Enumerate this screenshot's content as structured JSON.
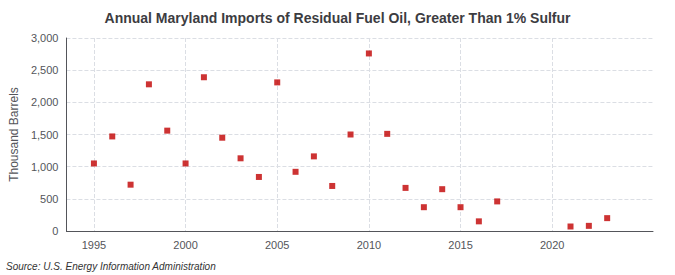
{
  "chart_data": {
    "type": "scatter",
    "title": "Annual Maryland Imports of Residual Fuel Oil, Greater Than 1% Sulfur",
    "ylabel": "Thousand Barrels",
    "annotations": [
      "Source: U.S. Energy Information Administration"
    ],
    "x": [
      1995,
      1996,
      1997,
      1998,
      1999,
      2000,
      2001,
      2002,
      2003,
      2004,
      2005,
      2006,
      2007,
      2008,
      2009,
      2010,
      2011,
      2012,
      2013,
      2014,
      2015,
      2016,
      2017,
      2021,
      2022,
      2023
    ],
    "values": [
      1050,
      1470,
      720,
      2280,
      1560,
      1050,
      2390,
      1450,
      1130,
      840,
      2310,
      920,
      1160,
      700,
      1500,
      2760,
      1510,
      670,
      370,
      650,
      370,
      150,
      460,
      70,
      80,
      200
    ],
    "color": "#c00000",
    "marker": "square",
    "xlim": [
      1993.5,
      2025.5
    ],
    "xticks": [
      1995,
      2000,
      2005,
      2010,
      2015,
      2020
    ],
    "ylim": [
      0,
      3000
    ],
    "yticks": [
      0,
      500,
      {
        "value": 1000,
        "label": "1,000"
      },
      {
        "value": 1500,
        "label": "1,500"
      },
      {
        "value": 2000,
        "label": "2,000"
      },
      {
        "value": 2500,
        "label": "2,500"
      },
      {
        "value": 3000,
        "label": "3,000"
      }
    ],
    "grid": true
  }
}
